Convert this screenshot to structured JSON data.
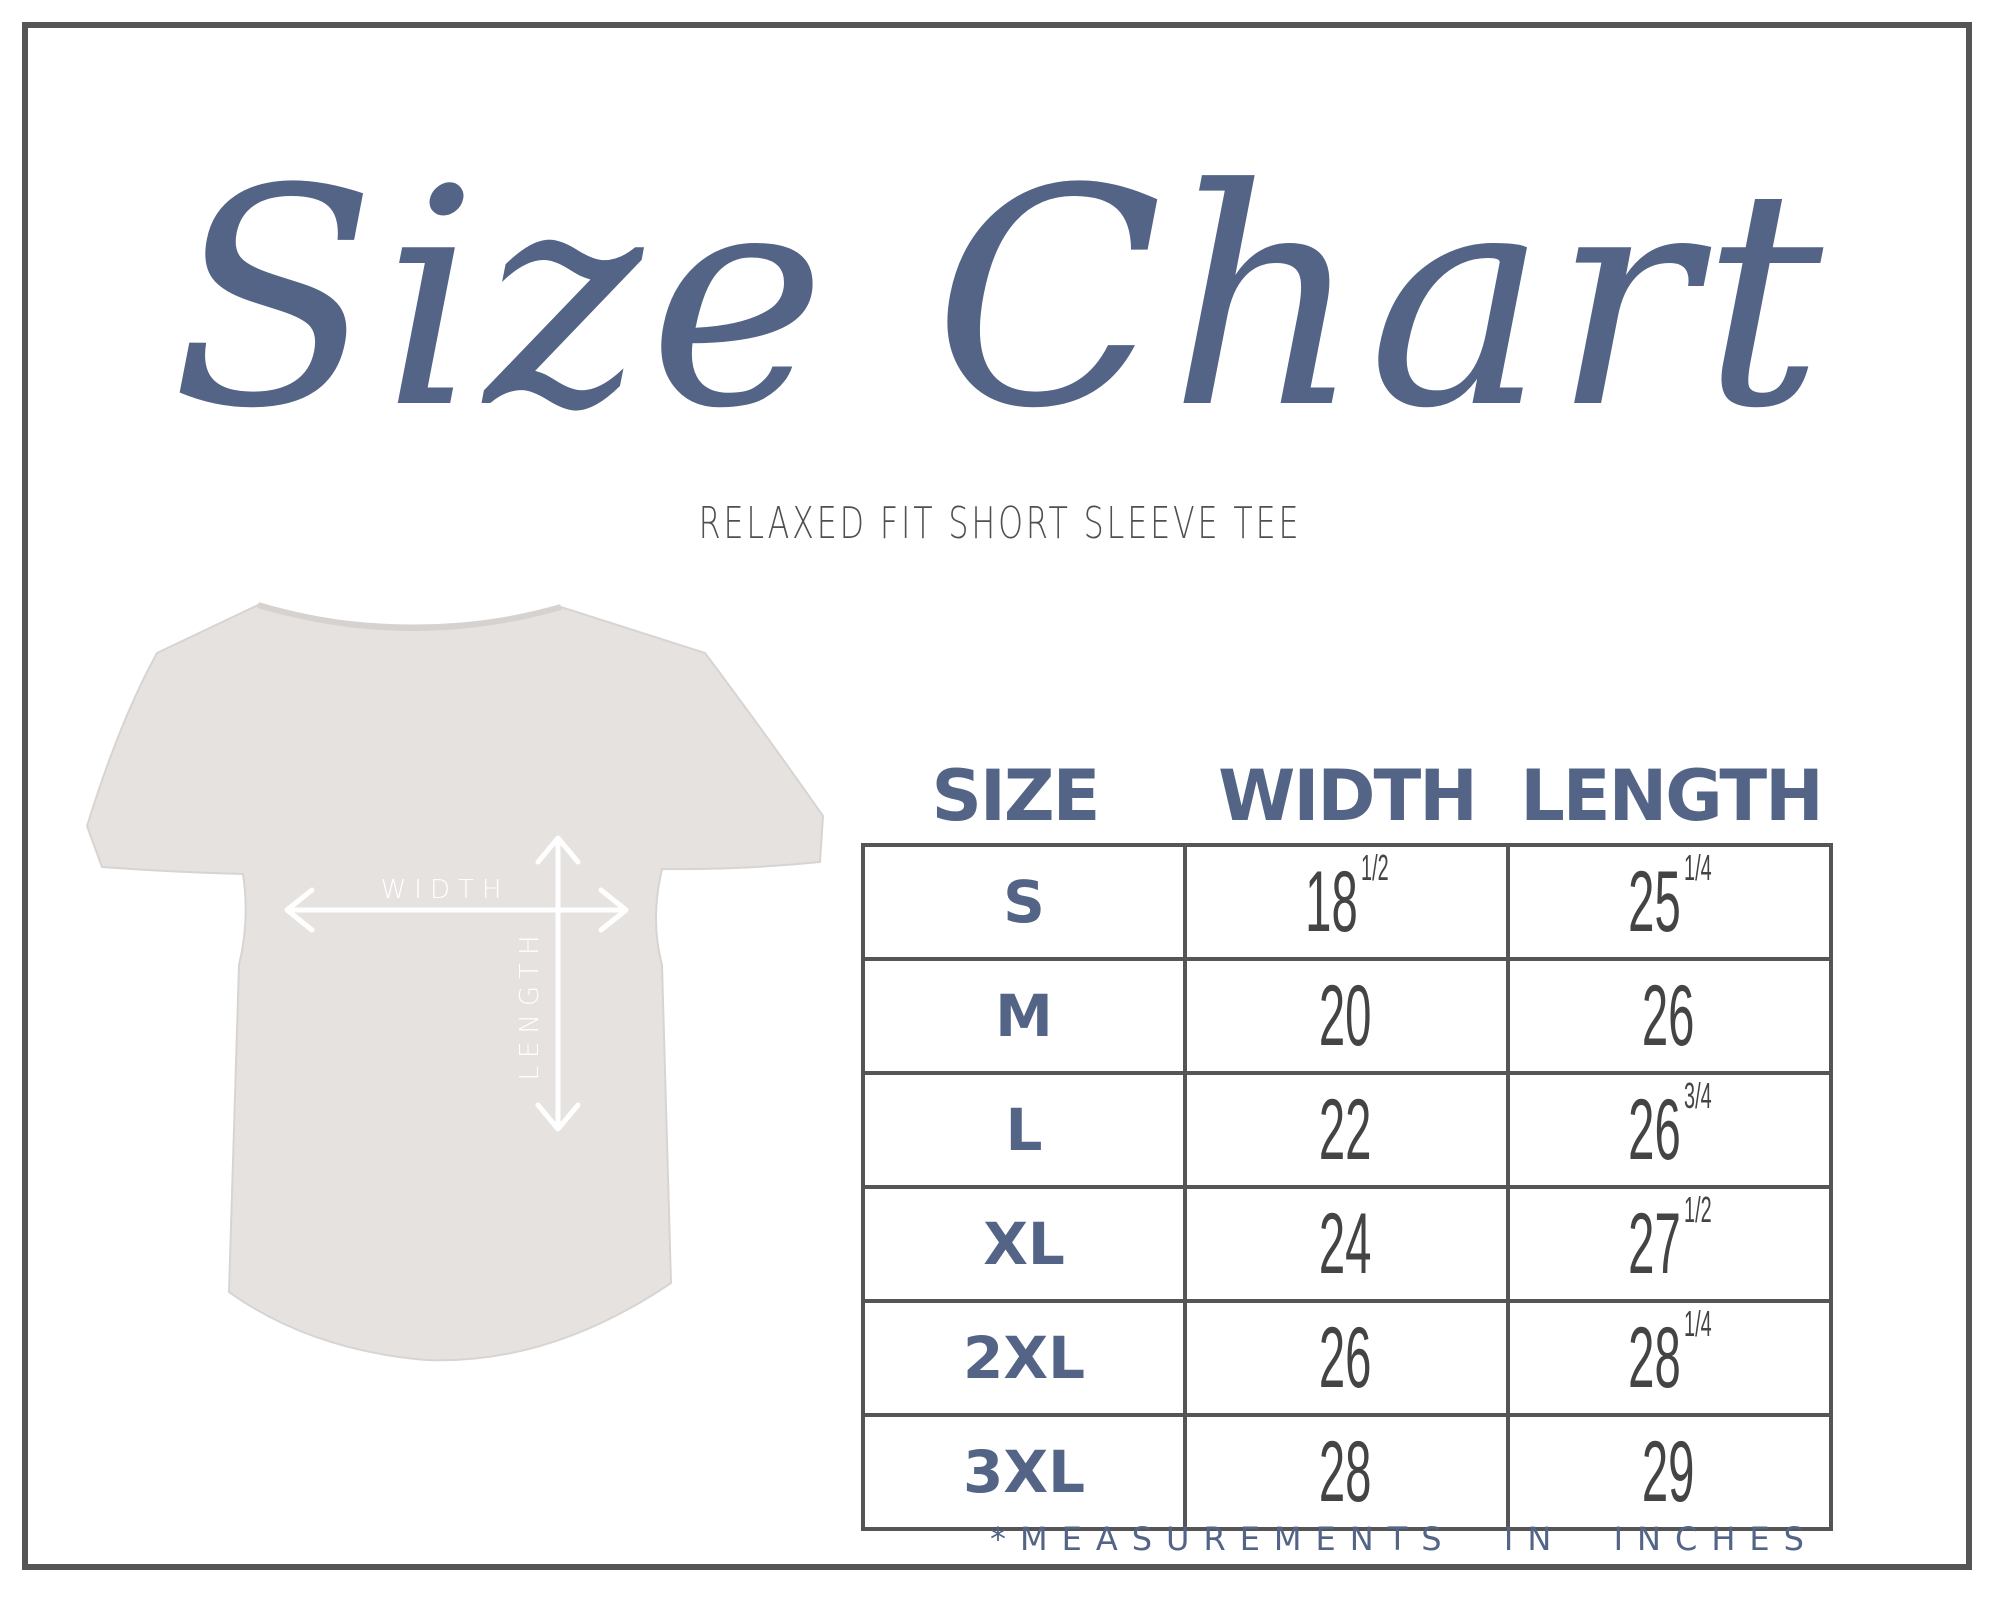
{
  "title": "Size Chart",
  "subtitle": "RELAXED FIT SHORT SLEEVE TEE",
  "diagram": {
    "width_label": "WIDTH",
    "length_label": "LENGTH"
  },
  "colors": {
    "accent": "#536487",
    "border": "#555555",
    "shirt": "#e6e2e0"
  },
  "table": {
    "headers": [
      "SIZE",
      "WIDTH",
      "LENGTH"
    ],
    "rows": [
      {
        "size": "S",
        "width": "18",
        "width_frac": "1/2",
        "length": "25",
        "length_frac": "1/4"
      },
      {
        "size": "M",
        "width": "20",
        "width_frac": "",
        "length": "26",
        "length_frac": ""
      },
      {
        "size": "L",
        "width": "22",
        "width_frac": "",
        "length": "26",
        "length_frac": "3/4"
      },
      {
        "size": "XL",
        "width": "24",
        "width_frac": "",
        "length": "27",
        "length_frac": "1/2"
      },
      {
        "size": "2XL",
        "width": "26",
        "width_frac": "",
        "length": "28",
        "length_frac": "1/4"
      },
      {
        "size": "3XL",
        "width": "28",
        "width_frac": "",
        "length": "29",
        "length_frac": ""
      }
    ]
  },
  "footnote": "*MEASUREMENTS  IN  INCHES"
}
